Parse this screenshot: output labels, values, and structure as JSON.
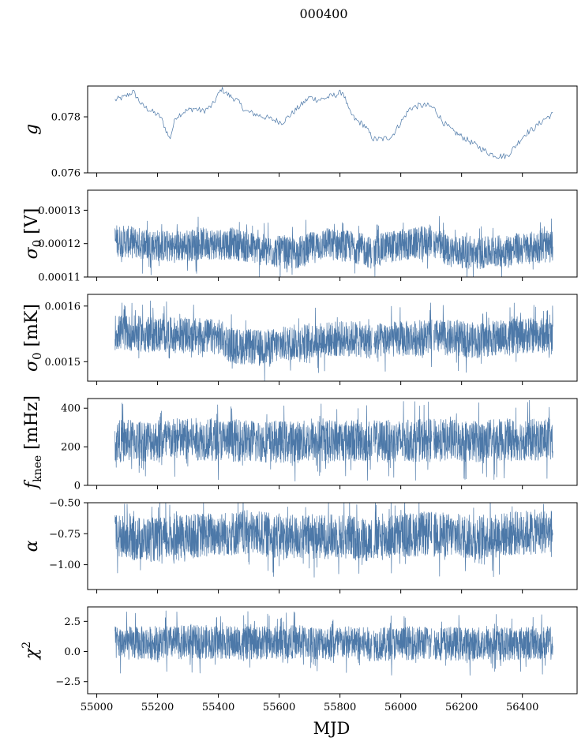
{
  "figure_title": "000400",
  "chart_data": [
    {
      "type": "line",
      "ylabel": "g",
      "xlim": [
        54970,
        56580
      ],
      "ylim": [
        0.076,
        0.0791
      ],
      "yticks": [
        0.076,
        0.078
      ],
      "ytick_labels": [
        "0.076",
        "0.078"
      ],
      "series": [
        {
          "name": "g",
          "color": "#4c78a8",
          "x": [
            55060,
            55090,
            55120,
            55150,
            55180,
            55210,
            55240,
            55260,
            55290,
            55320,
            55350,
            55380,
            55410,
            55430,
            55460,
            55490,
            55520,
            55550,
            55580,
            55610,
            55640,
            55670,
            55700,
            55730,
            55760,
            55790,
            55810,
            55830,
            55850,
            55880,
            55910,
            55940,
            55970,
            56000,
            56030,
            56060,
            56090,
            56110,
            56140,
            56170,
            56200,
            56230,
            56260,
            56290,
            56320,
            56350,
            56380,
            56410,
            56440,
            56470,
            56500
          ],
          "values": [
            0.0786,
            0.0787,
            0.0789,
            0.0784,
            0.0782,
            0.078,
            0.0772,
            0.078,
            0.0782,
            0.0783,
            0.0782,
            0.0784,
            0.079,
            0.0788,
            0.0786,
            0.0782,
            0.0781,
            0.078,
            0.0779,
            0.0778,
            0.0781,
            0.0784,
            0.0787,
            0.0786,
            0.0787,
            0.0788,
            0.0789,
            0.0782,
            0.0779,
            0.0777,
            0.0772,
            0.0772,
            0.0773,
            0.0778,
            0.0783,
            0.0784,
            0.0784,
            0.0783,
            0.0778,
            0.0775,
            0.0773,
            0.0771,
            0.0769,
            0.0767,
            0.0766,
            0.0766,
            0.077,
            0.0774,
            0.0776,
            0.0779,
            0.0781
          ]
        }
      ]
    },
    {
      "type": "line",
      "ylabel": "σ0 [V]",
      "xlim": [
        54970,
        56580
      ],
      "ylim": [
        0.00011,
        0.000136
      ],
      "yticks": [
        0.00011,
        0.00012,
        0.00013
      ],
      "ytick_labels": [
        "0.00011",
        "0.00012",
        "0.00013"
      ],
      "series": [
        {
          "name": "sigma0_V",
          "color": "#4c78a8",
          "x": [
            55060,
            55150,
            55250,
            55350,
            55450,
            55550,
            55650,
            55750,
            55850,
            55910,
            55950,
            56050,
            56100,
            56150,
            56250,
            56350,
            56450,
            56500
          ],
          "values": [
            0.000121,
            0.00012,
            0.000119,
            0.00012,
            0.00012,
            0.000118,
            0.000117,
            0.00012,
            0.000119,
            0.000117,
            0.000119,
            0.00012,
            0.000121,
            0.000118,
            0.000117,
            0.000118,
            0.000119,
            0.000119
          ],
          "band": 4.8e-06
        }
      ]
    },
    {
      "type": "line",
      "ylabel": "σ0 [mK]",
      "xlim": [
        54970,
        56580
      ],
      "ylim": [
        0.001465,
        0.001621
      ],
      "yticks": [
        0.0015,
        0.0016
      ],
      "ytick_labels": [
        "0.0015",
        "0.0016"
      ],
      "series": [
        {
          "name": "sigma0_mK",
          "color": "#4c78a8",
          "x": [
            55060,
            55150,
            55250,
            55400,
            55450,
            55550,
            55650,
            55750,
            55850,
            55910,
            55950,
            56050,
            56100,
            56150,
            56250,
            56350,
            56450,
            56500
          ],
          "values": [
            0.001553,
            0.00155,
            0.001548,
            0.001545,
            0.001528,
            0.001525,
            0.001535,
            0.00154,
            0.001542,
            0.001535,
            0.00154,
            0.001542,
            0.001545,
            0.001543,
            0.001538,
            0.001545,
            0.001548,
            0.001545
          ],
          "band": 3.2e-05
        }
      ]
    },
    {
      "type": "line",
      "ylabel": "fknee [mHz]",
      "xlim": [
        54970,
        56580
      ],
      "ylim": [
        0,
        450
      ],
      "yticks": [
        0,
        200,
        400
      ],
      "ytick_labels": [
        "0",
        "200",
        "400"
      ],
      "series": [
        {
          "name": "fknee",
          "color": "#4c78a8",
          "x": [
            55060,
            55200,
            55350,
            55500,
            55650,
            55800,
            55910,
            56000,
            56100,
            56250,
            56400,
            56500
          ],
          "values": [
            230,
            235,
            240,
            230,
            225,
            235,
            228,
            230,
            235,
            230,
            238,
            232
          ],
          "band": 110
        }
      ]
    },
    {
      "type": "line",
      "ylabel": "α",
      "xlim": [
        54970,
        56580
      ],
      "ylim": [
        -1.2,
        -0.5
      ],
      "yticks": [
        -1.0,
        -0.75,
        -0.5
      ],
      "ytick_labels": [
        "−1.00",
        "−0.75",
        "−0.50"
      ],
      "series": [
        {
          "name": "alpha",
          "color": "#4c78a8",
          "x": [
            55060,
            55200,
            55350,
            55500,
            55650,
            55800,
            55910,
            56000,
            56100,
            56250,
            56400,
            56500
          ],
          "values": [
            -0.78,
            -0.8,
            -0.76,
            -0.74,
            -0.78,
            -0.77,
            -0.8,
            -0.76,
            -0.75,
            -0.78,
            -0.74,
            -0.73
          ],
          "band": 0.18
        }
      ]
    },
    {
      "type": "line",
      "ylabel": "χ2",
      "xlabel": "MJD",
      "xlim": [
        54970,
        56580
      ],
      "ylim": [
        -3.5,
        3.7
      ],
      "yticks": [
        -2.5,
        0.0,
        2.5
      ],
      "ytick_labels": [
        "−2.5",
        "0.0",
        "2.5"
      ],
      "xticks": [
        55000,
        55200,
        55400,
        55600,
        55800,
        56000,
        56200,
        56400
      ],
      "xtick_labels": [
        "55000",
        "55200",
        "55400",
        "55600",
        "55800",
        "56000",
        "56200",
        "56400"
      ],
      "series": [
        {
          "name": "chi2",
          "color": "#4c78a8",
          "x": [
            55060,
            55200,
            55350,
            55500,
            55650,
            55800,
            55910,
            56000,
            56100,
            56250,
            56400,
            56500
          ],
          "values": [
            0.7,
            0.7,
            0.8,
            0.7,
            0.8,
            0.7,
            0.6,
            0.7,
            0.7,
            0.6,
            0.7,
            0.7
          ],
          "band": 1.4
        }
      ]
    }
  ],
  "gaps": [
    55908,
    56105
  ]
}
